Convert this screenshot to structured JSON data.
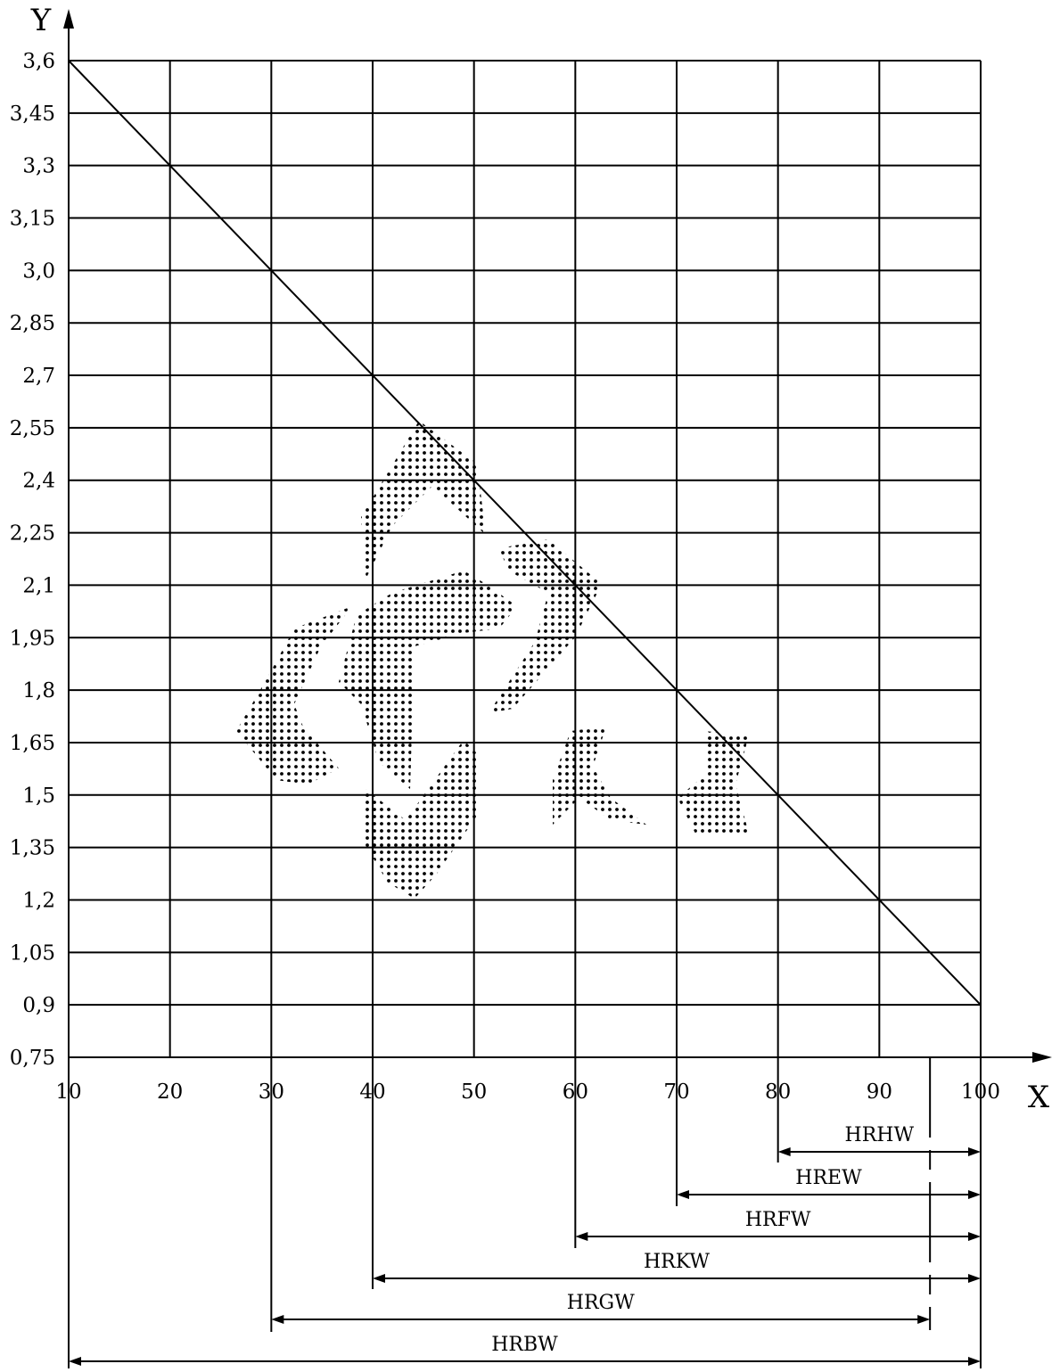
{
  "chart_data": {
    "type": "line",
    "title": "",
    "xlabel": "X",
    "ylabel": "Y",
    "xlim": [
      10,
      100
    ],
    "ylim": [
      0.75,
      3.6
    ],
    "grid": true,
    "x_ticks": [
      10,
      20,
      30,
      40,
      50,
      60,
      70,
      80,
      90,
      100
    ],
    "x_tick_labels": [
      "10",
      "20",
      "30",
      "40",
      "50",
      "60",
      "70",
      "80",
      "90",
      "100"
    ],
    "y_ticks": [
      0.75,
      0.9,
      1.05,
      1.2,
      1.35,
      1.5,
      1.65,
      1.8,
      1.95,
      2.1,
      2.25,
      2.4,
      2.55,
      2.7,
      2.85,
      3.0,
      3.15,
      3.3,
      3.45,
      3.6
    ],
    "y_tick_labels": [
      "0,75",
      "0,9",
      "1,05",
      "1,2",
      "1,35",
      "1,5",
      "1,65",
      "1,8",
      "1,95",
      "2,1",
      "2,25",
      "2,4",
      "2,55",
      "2,7",
      "2,85",
      "3,0",
      "3,15",
      "3,3",
      "3,45",
      "3,6"
    ],
    "series": [
      {
        "x": [
          10,
          100
        ],
        "y": [
          3.6,
          0.9
        ]
      }
    ],
    "reference_line_x": 95,
    "ranges": [
      {
        "label": "HRHW",
        "from": 80,
        "to": 100
      },
      {
        "label": "HREW",
        "from": 70,
        "to": 100
      },
      {
        "label": "HRFW",
        "from": 60,
        "to": 100
      },
      {
        "label": "HRKW",
        "from": 40,
        "to": 100
      },
      {
        "label": "HRGW",
        "from": 30,
        "to": 95
      },
      {
        "label": "HRBW",
        "from": 10,
        "to": 100
      }
    ]
  }
}
